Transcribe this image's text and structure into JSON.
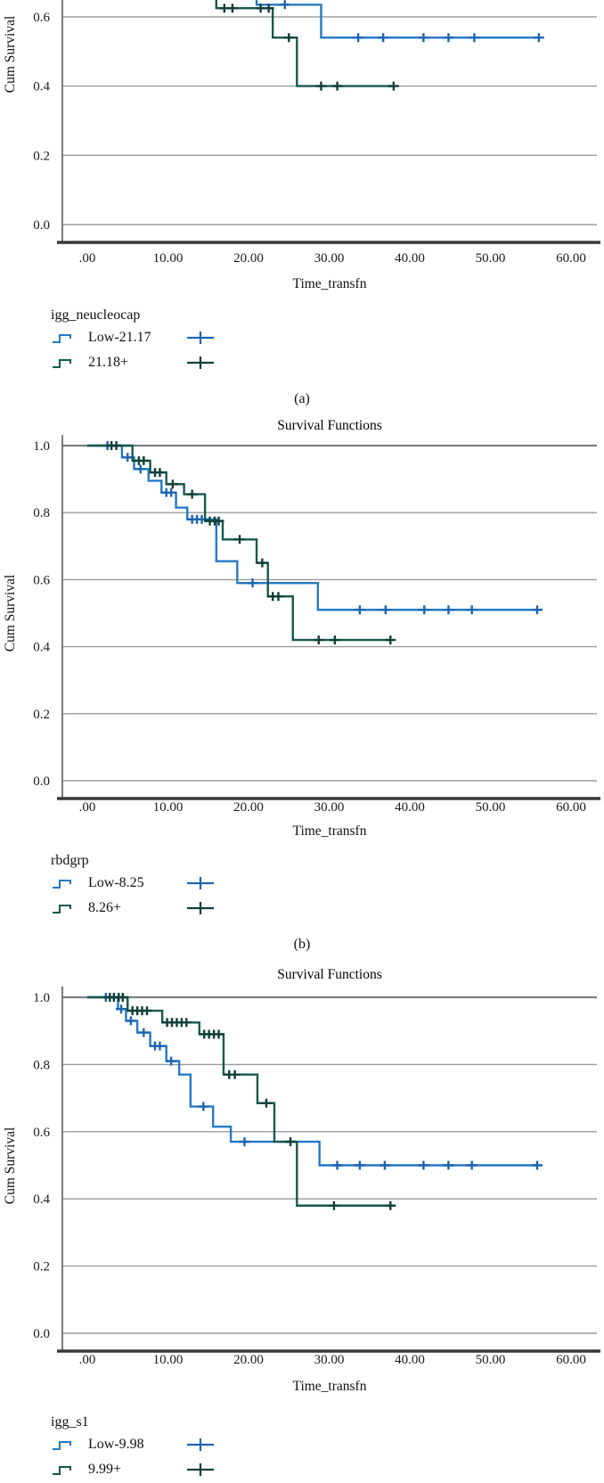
{
  "figure": {
    "background": "#ffffff"
  },
  "chart_data": [
    {
      "id": "a",
      "type": "line",
      "subtype": "kaplan-meier-step",
      "caption": "(a)",
      "xlabel": "Time_transfn",
      "ylabel": "Cum Survival",
      "note": "top of plot clipped; only y <= ~0.65 visible",
      "xlim": [
        -3,
        64
      ],
      "visible_ylim": [
        -0.05,
        0.655
      ],
      "grid_values": [
        0.0,
        0.2,
        0.4,
        0.6
      ],
      "y_ticks": [
        {
          "value": 0.6,
          "label": "0.6"
        },
        {
          "value": 0.4,
          "label": "0.4"
        },
        {
          "value": 0.2,
          "label": "0.2"
        },
        {
          "value": 0.0,
          "label": "0.0"
        }
      ],
      "x_ticks": [
        {
          "value": 0,
          "label": ".00"
        },
        {
          "value": 10,
          "label": "10.00"
        },
        {
          "value": 20,
          "label": "20.00"
        },
        {
          "value": 30,
          "label": "30.00"
        },
        {
          "value": 40,
          "label": "40.00"
        },
        {
          "value": 50,
          "label": "50.00"
        },
        {
          "value": 60,
          "label": "60.00"
        }
      ],
      "legend": {
        "title": "igg_neucleocap",
        "entries": [
          {
            "label": "Low-21.17"
          },
          {
            "label": "21.18+"
          }
        ]
      },
      "series": [
        {
          "name": "Low-21.17",
          "color": "#2478c5",
          "censor_color": "#1c64b0",
          "steps": [
            [
              17,
              0.72
            ],
            [
              17,
              0.66
            ],
            [
              21,
              0.66
            ],
            [
              21,
              0.635
            ],
            [
              29,
              0.635
            ],
            [
              29,
              0.54
            ],
            [
              56,
              0.54
            ]
          ],
          "censors": [
            [
              24.5,
              0.635
            ],
            [
              33.6,
              0.54
            ],
            [
              36.7,
              0.54
            ],
            [
              41.7,
              0.54
            ],
            [
              44.8,
              0.54
            ],
            [
              48,
              0.54
            ],
            [
              56,
              0.54
            ]
          ]
        },
        {
          "name": "21.18+",
          "color": "#16594f",
          "censor_color": "#103f39",
          "steps": [
            [
              16,
              0.72
            ],
            [
              16,
              0.625
            ],
            [
              23,
              0.625
            ],
            [
              23,
              0.54
            ],
            [
              26,
              0.54
            ],
            [
              26,
              0.4
            ],
            [
              38,
              0.4
            ]
          ],
          "censors": [
            [
              17,
              0.625
            ],
            [
              18,
              0.625
            ],
            [
              21.5,
              0.625
            ],
            [
              22.5,
              0.625
            ],
            [
              25,
              0.54
            ],
            [
              29,
              0.4
            ],
            [
              31,
              0.4
            ],
            [
              38,
              0.4
            ]
          ]
        }
      ]
    },
    {
      "id": "b",
      "type": "line",
      "subtype": "kaplan-meier-step",
      "title": "Survival Functions",
      "caption": "(b)",
      "xlabel": "Time_transfn",
      "ylabel": "Cum Survival",
      "xlim": [
        -3,
        64
      ],
      "ylim": [
        -0.05,
        1.04
      ],
      "grid_values": [
        0.0,
        0.2,
        0.4,
        0.6,
        0.8,
        1.0
      ],
      "y_ticks": [
        {
          "value": 1.0,
          "label": "1.0"
        },
        {
          "value": 0.8,
          "label": "0.8"
        },
        {
          "value": 0.6,
          "label": "0.6"
        },
        {
          "value": 0.4,
          "label": "0.4"
        },
        {
          "value": 0.2,
          "label": "0.2"
        },
        {
          "value": 0.0,
          "label": "0.0"
        }
      ],
      "x_ticks": [
        {
          "value": 0,
          "label": ".00"
        },
        {
          "value": 10,
          "label": "10.00"
        },
        {
          "value": 20,
          "label": "20.00"
        },
        {
          "value": 30,
          "label": "30.00"
        },
        {
          "value": 40,
          "label": "40.00"
        },
        {
          "value": 50,
          "label": "50.00"
        },
        {
          "value": 60,
          "label": "60.00"
        }
      ],
      "legend": {
        "title": "rbdgrp",
        "entries": [
          {
            "label": "Low-8.25"
          },
          {
            "label": "8.26+"
          }
        ]
      },
      "series": [
        {
          "name": "Low-8.25",
          "color": "#2478c5",
          "censor_color": "#1c64b0",
          "steps": [
            [
              0,
              1.0
            ],
            [
              4.3,
              1.0
            ],
            [
              4.3,
              0.965
            ],
            [
              5.8,
              0.965
            ],
            [
              5.8,
              0.93
            ],
            [
              7.6,
              0.93
            ],
            [
              7.6,
              0.895
            ],
            [
              9.2,
              0.895
            ],
            [
              9.2,
              0.86
            ],
            [
              11,
              0.86
            ],
            [
              11,
              0.815
            ],
            [
              12.4,
              0.815
            ],
            [
              12.4,
              0.78
            ],
            [
              16,
              0.78
            ],
            [
              16,
              0.655
            ],
            [
              18.6,
              0.655
            ],
            [
              18.6,
              0.59
            ],
            [
              28.6,
              0.59
            ],
            [
              28.6,
              0.51
            ],
            [
              56,
              0.51
            ]
          ],
          "censors": [
            [
              2.5,
              1.0
            ],
            [
              5,
              0.965
            ],
            [
              6.6,
              0.93
            ],
            [
              9.8,
              0.86
            ],
            [
              10.4,
              0.86
            ],
            [
              13,
              0.78
            ],
            [
              13.6,
              0.78
            ],
            [
              14.2,
              0.78
            ],
            [
              20.5,
              0.59
            ],
            [
              33.8,
              0.51
            ],
            [
              37,
              0.51
            ],
            [
              41.8,
              0.51
            ],
            [
              44.8,
              0.51
            ],
            [
              47.7,
              0.51
            ],
            [
              55.8,
              0.51
            ]
          ]
        },
        {
          "name": "8.26+",
          "color": "#16594f",
          "censor_color": "#103f39",
          "steps": [
            [
              0,
              1.0
            ],
            [
              5.6,
              1.0
            ],
            [
              5.6,
              0.955
            ],
            [
              7.8,
              0.955
            ],
            [
              7.8,
              0.92
            ],
            [
              9.8,
              0.92
            ],
            [
              9.8,
              0.885
            ],
            [
              12,
              0.885
            ],
            [
              12,
              0.855
            ],
            [
              14.6,
              0.855
            ],
            [
              14.6,
              0.775
            ],
            [
              16.8,
              0.775
            ],
            [
              16.8,
              0.72
            ],
            [
              21,
              0.72
            ],
            [
              21,
              0.65
            ],
            [
              22.4,
              0.65
            ],
            [
              22.4,
              0.55
            ],
            [
              25.5,
              0.55
            ],
            [
              25.5,
              0.42
            ],
            [
              37.6,
              0.42
            ]
          ],
          "censors": [
            [
              3,
              1.0
            ],
            [
              3.6,
              1.0
            ],
            [
              6.4,
              0.955
            ],
            [
              7,
              0.955
            ],
            [
              8.4,
              0.92
            ],
            [
              9,
              0.92
            ],
            [
              10.6,
              0.885
            ],
            [
              13,
              0.855
            ],
            [
              15.2,
              0.775
            ],
            [
              15.8,
              0.775
            ],
            [
              16.3,
              0.775
            ],
            [
              18.9,
              0.72
            ],
            [
              21.7,
              0.65
            ],
            [
              23,
              0.55
            ],
            [
              23.7,
              0.55
            ],
            [
              28.7,
              0.42
            ],
            [
              30.7,
              0.42
            ],
            [
              37.6,
              0.42
            ]
          ]
        }
      ]
    },
    {
      "id": "c",
      "type": "line",
      "subtype": "kaplan-meier-step",
      "title": "Survival Functions",
      "xlabel": "Time_transfn",
      "ylabel": "Cum Survival",
      "xlim": [
        -3,
        64
      ],
      "ylim": [
        -0.05,
        1.04
      ],
      "grid_values": [
        0.0,
        0.2,
        0.4,
        0.6,
        0.8,
        1.0
      ],
      "y_ticks": [
        {
          "value": 1.0,
          "label": "1.0"
        },
        {
          "value": 0.8,
          "label": "0.8"
        },
        {
          "value": 0.6,
          "label": "0.6"
        },
        {
          "value": 0.4,
          "label": "0.4"
        },
        {
          "value": 0.2,
          "label": "0.2"
        },
        {
          "value": 0.0,
          "label": "0.0"
        }
      ],
      "x_ticks": [
        {
          "value": 0,
          "label": ".00"
        },
        {
          "value": 10,
          "label": "10.00"
        },
        {
          "value": 20,
          "label": "20.00"
        },
        {
          "value": 30,
          "label": "30.00"
        },
        {
          "value": 40,
          "label": "40.00"
        },
        {
          "value": 50,
          "label": "50.00"
        },
        {
          "value": 60,
          "label": "60.00"
        }
      ],
      "legend": {
        "title": "igg_s1",
        "entries": [
          {
            "label": "Low-9.98"
          },
          {
            "label": "9.99+"
          }
        ]
      },
      "series": [
        {
          "name": "Low-9.98",
          "color": "#2478c5",
          "censor_color": "#1c64b0",
          "steps": [
            [
              0,
              1.0
            ],
            [
              3.8,
              1.0
            ],
            [
              3.8,
              0.965
            ],
            [
              4.8,
              0.965
            ],
            [
              4.8,
              0.93
            ],
            [
              6.2,
              0.93
            ],
            [
              6.2,
              0.895
            ],
            [
              7.8,
              0.895
            ],
            [
              7.8,
              0.855
            ],
            [
              9.8,
              0.855
            ],
            [
              9.8,
              0.81
            ],
            [
              11.4,
              0.81
            ],
            [
              11.4,
              0.77
            ],
            [
              12.8,
              0.77
            ],
            [
              12.8,
              0.675
            ],
            [
              15.6,
              0.675
            ],
            [
              15.6,
              0.615
            ],
            [
              17.8,
              0.615
            ],
            [
              17.8,
              0.57
            ],
            [
              28.8,
              0.57
            ],
            [
              28.8,
              0.5
            ],
            [
              56,
              0.5
            ]
          ],
          "censors": [
            [
              2.3,
              1.0
            ],
            [
              4.2,
              0.965
            ],
            [
              5.4,
              0.93
            ],
            [
              7,
              0.895
            ],
            [
              8.4,
              0.855
            ],
            [
              9,
              0.855
            ],
            [
              10.4,
              0.81
            ],
            [
              14.4,
              0.675
            ],
            [
              19.5,
              0.57
            ],
            [
              31,
              0.5
            ],
            [
              33.8,
              0.5
            ],
            [
              36.9,
              0.5
            ],
            [
              41.7,
              0.5
            ],
            [
              44.8,
              0.5
            ],
            [
              47.7,
              0.5
            ],
            [
              55.8,
              0.5
            ]
          ]
        },
        {
          "name": "9.99+",
          "color": "#16594f",
          "censor_color": "#103f39",
          "steps": [
            [
              0,
              1.0
            ],
            [
              5,
              1.0
            ],
            [
              5,
              0.96
            ],
            [
              9.3,
              0.96
            ],
            [
              9.3,
              0.925
            ],
            [
              13.9,
              0.925
            ],
            [
              13.9,
              0.89
            ],
            [
              16.9,
              0.89
            ],
            [
              16.9,
              0.77
            ],
            [
              21.1,
              0.77
            ],
            [
              21.1,
              0.685
            ],
            [
              23.2,
              0.685
            ],
            [
              23.2,
              0.57
            ],
            [
              26,
              0.57
            ],
            [
              26,
              0.38
            ],
            [
              37.6,
              0.38
            ]
          ],
          "censors": [
            [
              2.8,
              1.0
            ],
            [
              3.3,
              1.0
            ],
            [
              3.9,
              1.0
            ],
            [
              4.4,
              1.0
            ],
            [
              5.6,
              0.96
            ],
            [
              6.2,
              0.96
            ],
            [
              6.8,
              0.96
            ],
            [
              7.4,
              0.96
            ],
            [
              9.9,
              0.925
            ],
            [
              10.5,
              0.925
            ],
            [
              11.1,
              0.925
            ],
            [
              11.7,
              0.925
            ],
            [
              12.3,
              0.925
            ],
            [
              14.5,
              0.89
            ],
            [
              15.1,
              0.89
            ],
            [
              15.7,
              0.89
            ],
            [
              16.3,
              0.89
            ],
            [
              17.6,
              0.77
            ],
            [
              18.3,
              0.77
            ],
            [
              22.2,
              0.685
            ],
            [
              25.2,
              0.57
            ],
            [
              30.6,
              0.38
            ],
            [
              37.6,
              0.38
            ]
          ]
        }
      ]
    }
  ]
}
